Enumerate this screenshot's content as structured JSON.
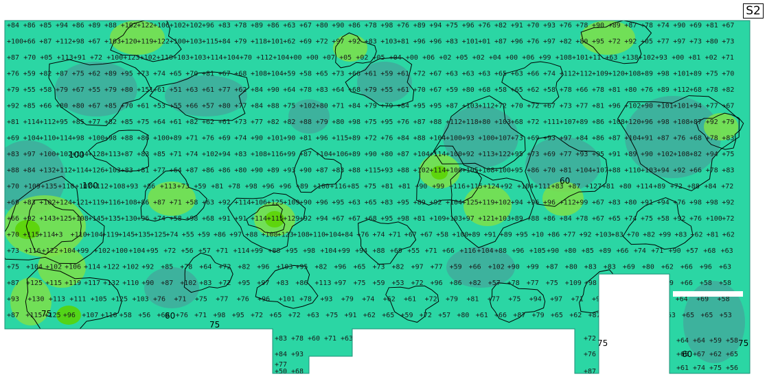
{
  "panel_label": "S2",
  "colors": {
    "background": "#2bd6a4",
    "low": "#3fae9c",
    "high": "#7ee04a",
    "peak": "#5bd400",
    "contour": "#000000",
    "notch": "#ffffff"
  },
  "contour_labels": [
    "75",
    "100",
    "100",
    "75",
    "60",
    "75",
    "60",
    "60",
    "75"
  ],
  "grid_values": [
    [
      "84",
      "86",
      "85",
      "94",
      "86",
      "89",
      "88",
      "102",
      "122",
      "106",
      "102",
      "102",
      "96",
      "83",
      "78",
      "89",
      "86",
      "63",
      "67",
      "80",
      "90",
      "86",
      "78",
      "98",
      "76",
      "89",
      "94",
      "75",
      "96",
      "76",
      "82",
      "91",
      "70",
      "93",
      "76",
      "78",
      "90",
      "89",
      "87",
      "78",
      "74",
      "90",
      "69",
      "81",
      "67"
    ],
    [
      "100",
      "66",
      "87",
      "112",
      "98",
      "67",
      "103",
      "120",
      "119",
      "122",
      "100",
      "103",
      "115",
      "84",
      "79",
      "118",
      "101",
      "62",
      "69",
      "72",
      "97",
      "92",
      "83",
      "103",
      "81",
      "96",
      "96",
      "83",
      "101",
      "01",
      "87",
      "96",
      "76",
      "97",
      "82",
      "80",
      "95",
      "72",
      "92",
      "05",
      "77",
      "97",
      "73",
      "80",
      "73"
    ],
    [
      "87",
      "70",
      "05",
      "113",
      "91",
      "72",
      "100",
      "123",
      "102",
      "110",
      "103",
      "103",
      "114",
      "104",
      "70",
      "112",
      "104",
      "00",
      "00",
      "07",
      "05",
      "02",
      "05",
      "04",
      "00",
      "06",
      "02",
      "05",
      "02",
      "04",
      "00",
      "06",
      "99",
      "108",
      "101",
      "11",
      "63",
      "138",
      "102",
      "93",
      "00",
      "81",
      "02",
      "71"
    ],
    [
      "76",
      "59",
      "82",
      "87",
      "75",
      "62",
      "89",
      "95",
      "73",
      "74",
      "65",
      "70",
      "81",
      "67",
      "68",
      "108",
      "104",
      "59",
      "58",
      "65",
      "73",
      "66",
      "61",
      "59",
      "61",
      "72",
      "67",
      "63",
      "63",
      "63",
      "65",
      "63",
      "66",
      "74",
      "112",
      "112",
      "109",
      "120",
      "108",
      "89",
      "98",
      "101",
      "89",
      "75",
      "70"
    ],
    [
      "79",
      "55",
      "58",
      "79",
      "67",
      "55",
      "79",
      "80",
      "151",
      "61",
      "51",
      "63",
      "61",
      "77",
      "62",
      "84",
      "90",
      "64",
      "78",
      "83",
      "64",
      "68",
      "79",
      "55",
      "61",
      "70",
      "67",
      "59",
      "80",
      "68",
      "58",
      "65",
      "62",
      "58",
      "78",
      "66",
      "78",
      "81",
      "80",
      "76",
      "89",
      "112",
      "68",
      "78",
      "82"
    ],
    [
      "92",
      "85",
      "66",
      "80",
      "80",
      "67",
      "85",
      "70",
      "61",
      "53",
      "55",
      "66",
      "57",
      "80",
      "77",
      "84",
      "88",
      "75",
      "102",
      "80",
      "71",
      "84",
      "79",
      "79",
      "84",
      "95",
      "95",
      "87",
      "103",
      "112",
      "72",
      "70",
      "72",
      "67",
      "73",
      "77",
      "81",
      "96",
      "102",
      "90",
      "101",
      "101",
      "94",
      "77",
      "67"
    ],
    [
      "81",
      "114",
      "112",
      "95",
      "85",
      "77",
      "82",
      "85",
      "75",
      "64",
      "61",
      "82",
      "62",
      "61",
      "73",
      "77",
      "82",
      "82",
      "88",
      "79",
      "80",
      "98",
      "75",
      "95",
      "76",
      "87",
      "88",
      "112",
      "118",
      "80",
      "103",
      "68",
      "72",
      "111",
      "107",
      "89",
      "86",
      "108",
      "120",
      "96",
      "98",
      "108",
      "87",
      "92",
      "79"
    ],
    [
      "69",
      "104",
      "110",
      "114",
      "98",
      "100",
      "98",
      "88",
      "86",
      "100",
      "89",
      "71",
      "76",
      "69",
      "74",
      "90",
      "101",
      "90",
      "81",
      "96",
      "115",
      "89",
      "72",
      "76",
      "84",
      "88",
      "104",
      "100",
      "93",
      "100",
      "107",
      "73",
      "69",
      "93",
      "97",
      "84",
      "86",
      "87",
      "104",
      "91",
      "87",
      "76",
      "68",
      "78",
      "83"
    ],
    [
      "83",
      "97",
      "100",
      "102",
      "114",
      "128",
      "113",
      "87",
      "83",
      "85",
      "71",
      "74",
      "102",
      "94",
      "83",
      "108",
      "116",
      "99",
      "87",
      "104",
      "106",
      "89",
      "90",
      "80",
      "87",
      "104",
      "114",
      "100",
      "92",
      "113",
      "122",
      "95",
      "73",
      "69",
      "77",
      "93",
      "95",
      "91",
      "89",
      "90",
      "102",
      "108",
      "82",
      "94",
      "75"
    ],
    [
      "88",
      "84",
      "132",
      "112",
      "114",
      "126",
      "103",
      "83",
      "81",
      "77",
      "64",
      "87",
      "86",
      "86",
      "80",
      "90",
      "89",
      "93",
      "90",
      "87",
      "83",
      "88",
      "115",
      "93",
      "88",
      "102",
      "114",
      "100",
      "105",
      "108",
      "100",
      "95",
      "86",
      "70",
      "81",
      "104",
      "107",
      "88",
      "110",
      "103",
      "94",
      "92",
      "66",
      "78",
      "83"
    ],
    [
      "70",
      "109",
      "135",
      "110",
      "107",
      "112",
      "108",
      "93",
      "86",
      "113",
      "73",
      "59",
      "81",
      "78",
      "98",
      "96",
      "96",
      "89",
      "100",
      "116",
      "85",
      "75",
      "81",
      "81",
      "90",
      "99",
      "116",
      "115",
      "124",
      "92",
      "104",
      "111",
      "83",
      "87",
      "127",
      "81",
      "80",
      "114",
      "89",
      "72",
      "88",
      "84",
      "72"
    ],
    [
      "69",
      "83",
      "102",
      "124",
      "121",
      "119",
      "116",
      "108",
      "86",
      "87",
      "71",
      "58",
      "63",
      "92",
      "114",
      "106",
      "125",
      "109",
      "90",
      "96",
      "95",
      "63",
      "65",
      "83",
      "95",
      "89",
      "92",
      "104",
      "125",
      "119",
      "102",
      "94",
      "96",
      "96",
      "112",
      "99",
      "67",
      "83",
      "80",
      "91",
      "94",
      "76",
      "98",
      "98",
      "92"
    ],
    [
      "66",
      "92",
      "143",
      "125",
      "108",
      "145",
      "135",
      "130",
      "96",
      "74",
      "58",
      "98",
      "68",
      "91",
      "91",
      "114",
      "115",
      "129",
      "92",
      "94",
      "67",
      "67",
      "68",
      "95",
      "98",
      "81",
      "109",
      "103",
      "97",
      "121",
      "103",
      "89",
      "88",
      "86",
      "84",
      "78",
      "67",
      "65",
      "74",
      "75",
      "58",
      "92",
      "76",
      "100",
      "72"
    ],
    [
      "70",
      "115",
      "114",
      "3",
      "110",
      "104",
      "119",
      "145",
      "135",
      "125",
      "74",
      "55",
      "59",
      "86",
      "97",
      "88",
      "108",
      "123",
      "108",
      "110",
      "104",
      "84",
      "76",
      "74",
      "71",
      "67",
      "67",
      "58",
      "100",
      "89",
      "91",
      "89",
      "95",
      "10",
      "86",
      "77",
      "92",
      "103",
      "83",
      "70",
      "82",
      "99",
      "83",
      "62",
      "81",
      "62"
    ],
    [
      "73",
      "116",
      "122",
      "104",
      "99",
      "102",
      "100",
      "104",
      "95",
      "72",
      "56",
      "57",
      "71",
      "114",
      "99",
      "88",
      "95",
      "98",
      "104",
      "99",
      "94",
      "88",
      "69",
      "55",
      "71",
      "66",
      "116",
      "104",
      "88",
      "96",
      "105",
      "90",
      "80",
      "85",
      "89",
      "66",
      "74",
      "71",
      "90",
      "57",
      "68",
      "63"
    ],
    [
      "75",
      "104",
      "102",
      "106",
      "114",
      "122",
      "102",
      "92",
      "85",
      "78",
      "64",
      "72",
      "82",
      "96",
      "103",
      "95",
      "82",
      "96",
      "65",
      "73",
      "82",
      "97",
      "77",
      "59",
      "66",
      "102",
      "90",
      "99",
      "87",
      "80",
      "83",
      "83",
      "69",
      "80",
      "62",
      "66",
      "96",
      "63"
    ],
    [
      "87",
      "125",
      "115",
      "119",
      "117",
      "132",
      "110",
      "90",
      "87",
      "102",
      "83",
      "72",
      "95",
      "97",
      "83",
      "86",
      "113",
      "97",
      "75",
      "59",
      "53",
      "72",
      "96",
      "86",
      "82",
      "57",
      "78",
      "77",
      "75",
      "109",
      "98",
      "76",
      "79",
      "74",
      "59",
      "66",
      "58",
      "58"
    ],
    [
      "93",
      "130",
      "113",
      "111",
      "105",
      "125",
      "103",
      "76",
      "71",
      "75",
      "77",
      "76",
      "96",
      "101",
      "78",
      "93",
      "79",
      "74",
      "62",
      "61",
      "72",
      "79",
      "81",
      "77",
      "75",
      "94",
      "97",
      "71",
      "93",
      "89",
      "89",
      "63",
      "64",
      "69",
      "58"
    ],
    [
      "87",
      "115",
      "125",
      "96",
      "107",
      "110",
      "58",
      "56",
      "69",
      "76",
      "71",
      "98",
      "95",
      "72",
      "65",
      "72",
      "63",
      "75",
      "91",
      "62",
      "65",
      "59",
      "72",
      "57",
      "80",
      "61",
      "66",
      "87",
      "79",
      "65",
      "62",
      "87",
      "91",
      "79",
      "70",
      "63",
      "65",
      "65",
      "53"
    ]
  ],
  "side_values": [
    [
      "83",
      "78",
      "60",
      "71",
      "63"
    ],
    [
      "84",
      "93"
    ],
    [
      "77"
    ],
    [
      "50",
      "68"
    ],
    [
      "72"
    ],
    [
      "76"
    ],
    [
      "87"
    ],
    [
      "64",
      "64",
      "59",
      "58"
    ],
    [
      "65",
      "67",
      "62",
      "65"
    ],
    [
      "61",
      "74",
      "75",
      "56"
    ]
  ]
}
